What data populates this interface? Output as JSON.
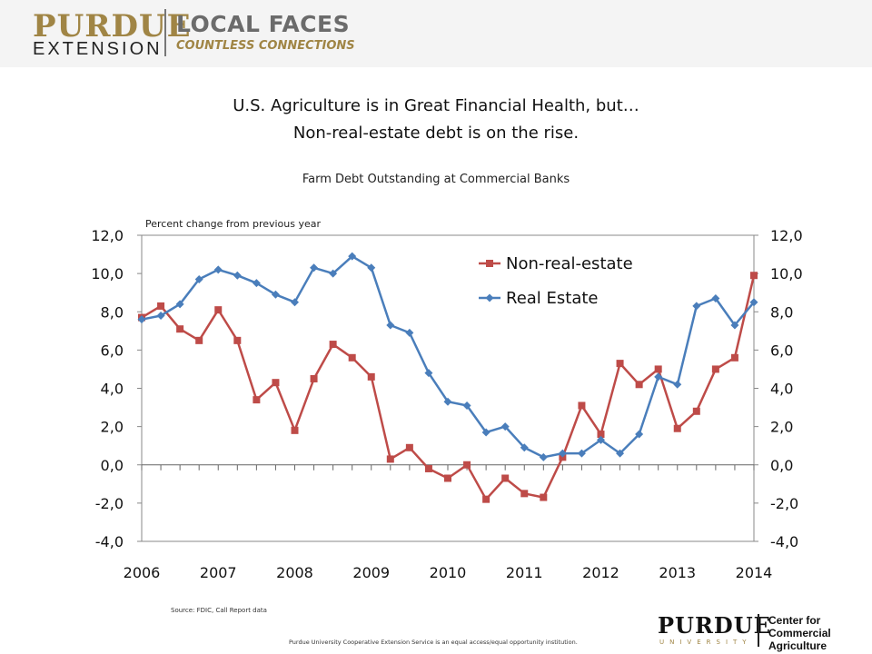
{
  "branding": {
    "purdue": "PURDUE",
    "extension": "EXTENSION",
    "local_faces": "LOCAL FACES",
    "countless": "COUNTLESS CONNECTIONS"
  },
  "slide": {
    "title_line1": "U.S. Agriculture is in Great Financial Health, but…",
    "title_line2": "Non-real-estate debt is on the rise."
  },
  "footer": {
    "source": "Source: FDIC, Call Report data",
    "disclaimer": "Purdue University Cooperative Extension Service is an equal access/equal opportunity institution.",
    "purdue": "PURDUE",
    "university": "UNIVERSITY",
    "center": "Center for Commercial Agriculture"
  },
  "chart_data": {
    "type": "line",
    "title": "Farm Debt Outstanding at Commercial Banks",
    "ylabel": "Percent change from previous year",
    "xlabel": "",
    "x_tick_labels": [
      "2006",
      "2007",
      "2008",
      "2009",
      "2010",
      "2011",
      "2012",
      "2013",
      "2014"
    ],
    "y_tick_labels": [
      "12,0",
      "10,0",
      "8,0",
      "6,0",
      "4,0",
      "2,0",
      "0,0",
      "-2,0",
      "-4,0"
    ],
    "ylim": [
      -4,
      12
    ],
    "xlim": [
      2006,
      2014
    ],
    "grid": false,
    "legend_position": "top-right",
    "series": [
      {
        "name": "Non-real-estate",
        "color": "#be4b48",
        "marker": "square",
        "x": [
          2006.0,
          2006.25,
          2006.5,
          2006.75,
          2007.0,
          2007.25,
          2007.5,
          2007.75,
          2008.0,
          2008.25,
          2008.5,
          2008.75,
          2009.0,
          2009.25,
          2009.5,
          2009.75,
          2010.0,
          2010.25,
          2010.5,
          2010.75,
          2011.0,
          2011.25,
          2011.5,
          2011.75,
          2012.0,
          2012.25,
          2012.5,
          2012.75,
          2013.0,
          2013.25,
          2013.5,
          2013.75,
          2014.0
        ],
        "values": [
          7.7,
          8.3,
          7.1,
          6.5,
          8.1,
          6.5,
          3.4,
          4.3,
          1.8,
          4.5,
          6.3,
          5.6,
          4.6,
          0.3,
          0.9,
          -0.2,
          -0.7,
          0.0,
          -1.8,
          -0.7,
          -1.5,
          -1.7,
          0.4,
          3.1,
          1.6,
          5.3,
          4.2,
          5.0,
          1.9,
          2.8,
          5.0,
          5.6,
          9.9
        ]
      },
      {
        "name": "Real Estate",
        "color": "#4a7ebb",
        "marker": "diamond",
        "x": [
          2006.0,
          2006.25,
          2006.5,
          2006.75,
          2007.0,
          2007.25,
          2007.5,
          2007.75,
          2008.0,
          2008.25,
          2008.5,
          2008.75,
          2009.0,
          2009.25,
          2009.5,
          2009.75,
          2010.0,
          2010.25,
          2010.5,
          2010.75,
          2011.0,
          2011.25,
          2011.5,
          2011.75,
          2012.0,
          2012.25,
          2012.5,
          2012.75,
          2013.0,
          2013.25,
          2013.5,
          2013.75,
          2014.0
        ],
        "values": [
          7.6,
          7.8,
          8.4,
          9.7,
          10.2,
          9.9,
          9.5,
          8.9,
          8.5,
          10.3,
          10.0,
          10.9,
          10.3,
          7.3,
          6.9,
          4.8,
          3.3,
          3.1,
          1.7,
          2.0,
          0.9,
          0.4,
          0.6,
          0.6,
          1.3,
          0.6,
          1.6,
          4.6,
          4.2,
          8.3,
          8.7,
          7.3,
          8.5
        ]
      }
    ]
  }
}
